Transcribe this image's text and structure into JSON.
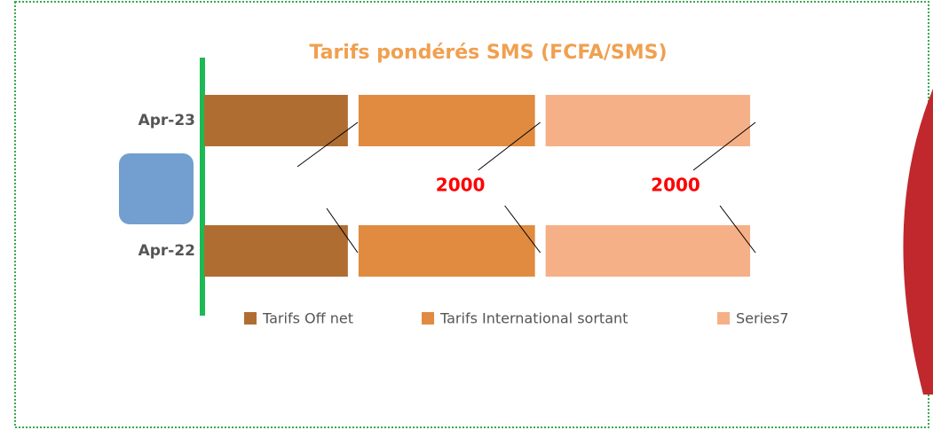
{
  "chart_data": {
    "type": "stacked-bar-horizontal",
    "title": "Tarifs pondérés SMS (FCFA/SMS)",
    "categories": [
      "Apr-23",
      "Apr-22"
    ],
    "series": [
      {
        "name": "Tarifs Off net",
        "color": "#b06d32",
        "values": [
          1650,
          1650
        ]
      },
      {
        "name": "Tarifs International sortant",
        "color": "#e08b40",
        "values": [
          2000,
          2000
        ]
      },
      {
        "name": "Series7",
        "color": "#f6b088",
        "values": [
          2300,
          2300
        ]
      }
    ],
    "annotations": [
      "2000",
      "2000"
    ]
  }
}
